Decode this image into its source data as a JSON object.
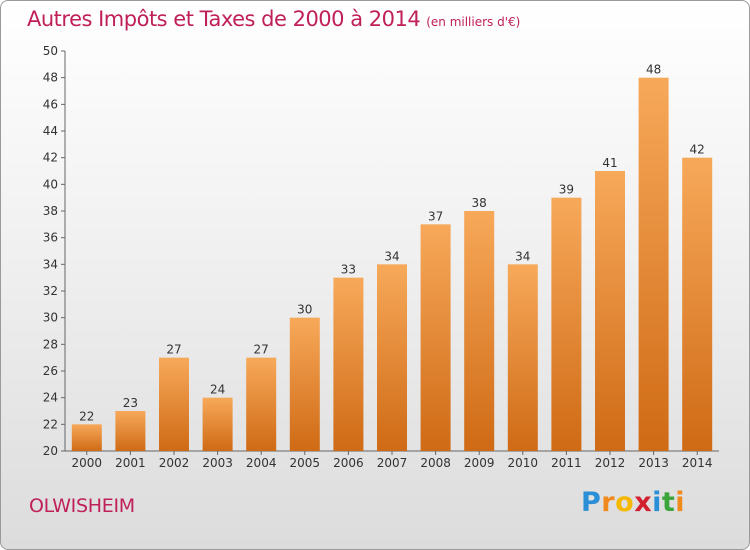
{
  "chart_data": {
    "type": "bar",
    "title": "Autres Impôts et Taxes de 2000 à 2014",
    "unit": "(en milliers d'€)",
    "categories": [
      "2000",
      "2001",
      "2002",
      "2003",
      "2004",
      "2005",
      "2006",
      "2007",
      "2008",
      "2009",
      "2010",
      "2011",
      "2012",
      "2013",
      "2014"
    ],
    "values": [
      22,
      23,
      27,
      24,
      27,
      30,
      33,
      34,
      37,
      38,
      34,
      39,
      41,
      48,
      42
    ],
    "ylim": [
      20,
      50
    ],
    "ytick_step": 2,
    "grid": false,
    "bar_color": "#f0882f",
    "bar_color_light": "#f7a95a",
    "bar_color_dark": "#cf6a15"
  },
  "commune": "OLWISHEIM",
  "logo": {
    "letters": [
      "P",
      "r",
      "o",
      "x",
      "i",
      "t",
      "i"
    ],
    "colors": [
      "#2a8fd6",
      "#f08a1d",
      "#f5b800",
      "#d2202f",
      "#2a8fd6",
      "#3aa63a",
      "#f08a1d"
    ]
  }
}
